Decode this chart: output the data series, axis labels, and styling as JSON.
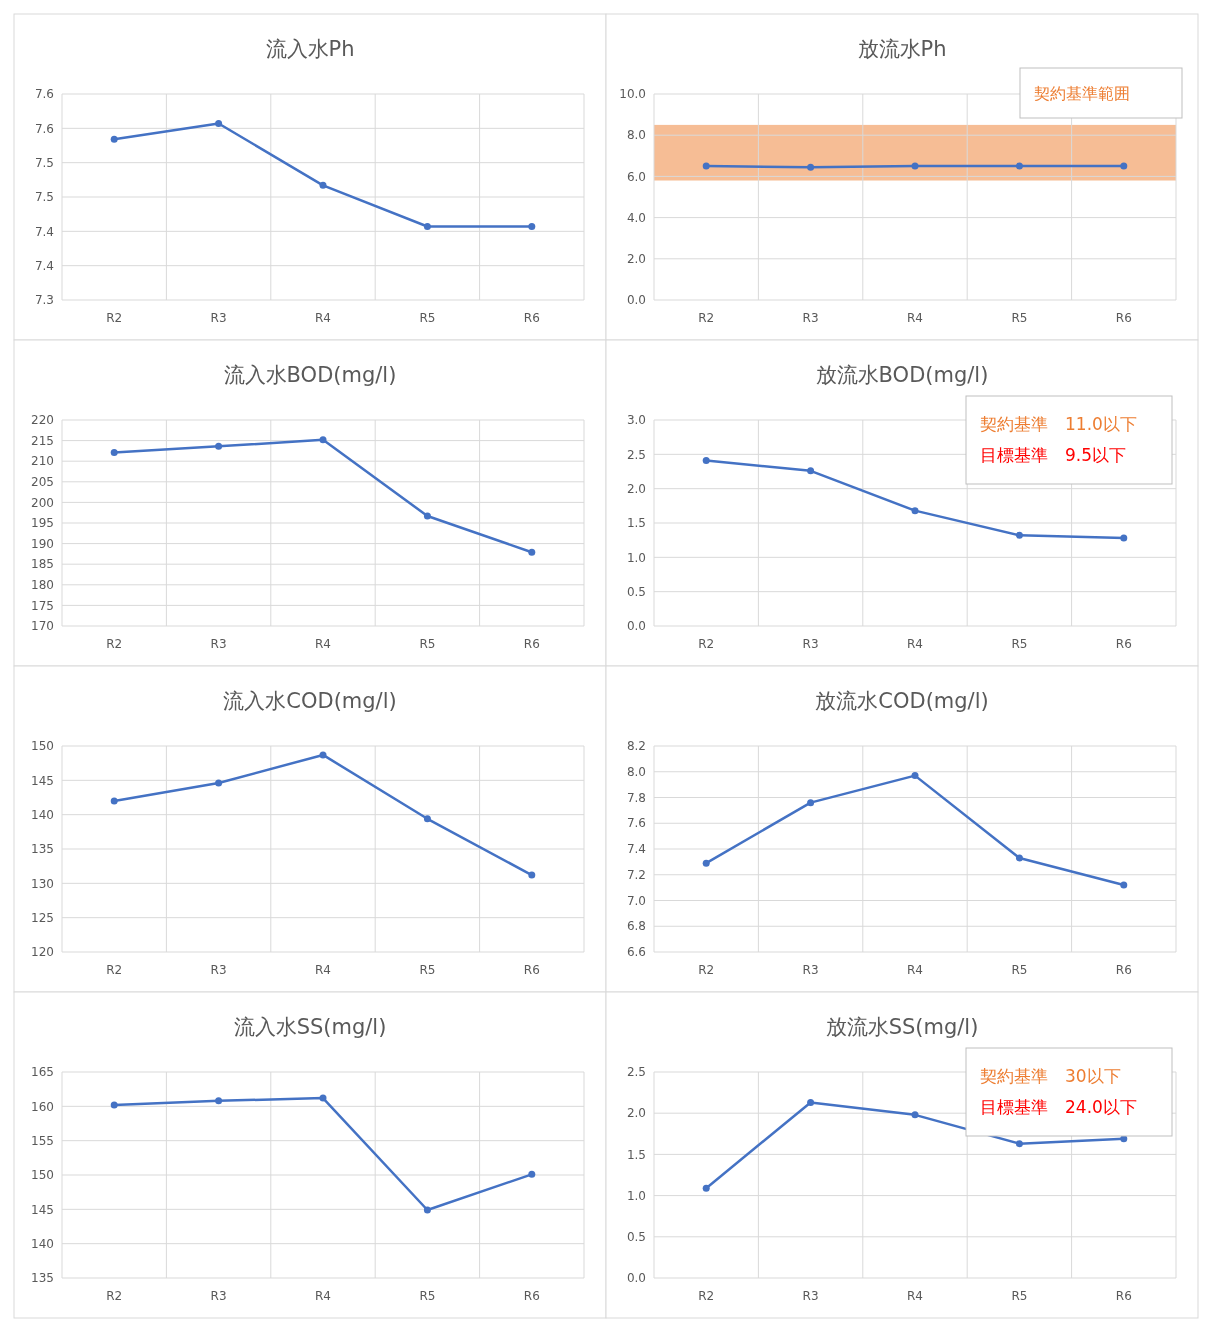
{
  "chart_data": [
    {
      "type": "line",
      "title": "流入水Ph",
      "categories": [
        "R2",
        "R3",
        "R4",
        "R5",
        "R6"
      ],
      "series": [
        {
          "color": "#4472c4",
          "values": [
            7.534,
            7.557,
            7.467,
            7.407,
            7.407
          ]
        }
      ],
      "ylim": [
        7.3,
        7.6
      ],
      "yticks": [
        {
          "value": 7.3,
          "label": "7.3"
        },
        {
          "value": 7.35,
          "label": "7.4"
        },
        {
          "value": 7.4,
          "label": "7.4"
        },
        {
          "value": 7.45,
          "label": "7.5"
        },
        {
          "value": 7.5,
          "label": "7.5"
        },
        {
          "value": 7.55,
          "label": "7.6"
        },
        {
          "value": 7.6,
          "label": "7.6"
        }
      ],
      "grid": true,
      "marker": "circle"
    },
    {
      "type": "line",
      "title": "放流水Ph",
      "categories": [
        "R2",
        "R3",
        "R4",
        "R5",
        "R6"
      ],
      "series": [
        {
          "color": "#4472c4",
          "values": [
            6.5,
            6.44,
            6.5,
            6.5,
            6.5
          ]
        }
      ],
      "ylim": [
        0,
        10
      ],
      "yticks": [
        {
          "value": 0,
          "label": "0.0"
        },
        {
          "value": 2,
          "label": "2.0"
        },
        {
          "value": 4,
          "label": "4.0"
        },
        {
          "value": 6,
          "label": "6.0"
        },
        {
          "value": 8,
          "label": "8.0"
        },
        {
          "value": 10,
          "label": "10.0"
        }
      ],
      "bands": [
        {
          "axis": "y",
          "from": 5.8,
          "to": 8.5,
          "label": "契約基準範囲",
          "color": "#f4b183"
        }
      ],
      "grid": true,
      "marker": "circle"
    },
    {
      "type": "line",
      "title": "流入水BOD(mg/l)",
      "categories": [
        "R2",
        "R3",
        "R4",
        "R5",
        "R6"
      ],
      "series": [
        {
          "color": "#4472c4",
          "values": [
            212.1,
            213.6,
            215.2,
            196.7,
            187.9
          ]
        }
      ],
      "ylim": [
        170,
        220
      ],
      "yticks": [
        170,
        175,
        180,
        185,
        190,
        195,
        200,
        205,
        210,
        215,
        220
      ],
      "grid": true,
      "marker": "circle"
    },
    {
      "type": "line",
      "title": "放流水BOD(mg/l)",
      "categories": [
        "R2",
        "R3",
        "R4",
        "R5",
        "R6"
      ],
      "series": [
        {
          "color": "#4472c4",
          "values": [
            2.41,
            2.26,
            1.68,
            1.32,
            1.28
          ]
        }
      ],
      "ylim": [
        0,
        3
      ],
      "yticks": [
        {
          "value": 0,
          "label": "0.0"
        },
        {
          "value": 0.5,
          "label": "0.5"
        },
        {
          "value": 1,
          "label": "1.0"
        },
        {
          "value": 1.5,
          "label": "1.5"
        },
        {
          "value": 2,
          "label": "2.0"
        },
        {
          "value": 2.5,
          "label": "2.5"
        },
        {
          "value": 3,
          "label": "3.0"
        }
      ],
      "annotations": [
        "契約基準　11.0以下",
        "目標基準　9.5以下"
      ],
      "grid": true,
      "marker": "circle"
    },
    {
      "type": "line",
      "title": "流入水COD(mg/l)",
      "categories": [
        "R2",
        "R3",
        "R4",
        "R5",
        "R6"
      ],
      "series": [
        {
          "color": "#4472c4",
          "values": [
            142.0,
            144.6,
            148.7,
            139.4,
            131.2
          ]
        }
      ],
      "ylim": [
        120,
        150
      ],
      "yticks": [
        120,
        125,
        130,
        135,
        140,
        145,
        150
      ],
      "grid": true,
      "marker": "circle"
    },
    {
      "type": "line",
      "title": "放流水COD(mg/l)",
      "categories": [
        "R2",
        "R3",
        "R4",
        "R5",
        "R6"
      ],
      "series": [
        {
          "color": "#4472c4",
          "values": [
            7.29,
            7.76,
            7.97,
            7.33,
            7.12
          ]
        }
      ],
      "ylim": [
        6.6,
        8.2
      ],
      "yticks": [
        {
          "value": 6.6,
          "label": "6.6"
        },
        {
          "value": 6.8,
          "label": "6.8"
        },
        {
          "value": 7,
          "label": "7.0"
        },
        {
          "value": 7.2,
          "label": "7.2"
        },
        {
          "value": 7.4,
          "label": "7.4"
        },
        {
          "value": 7.6,
          "label": "7.6"
        },
        {
          "value": 7.8,
          "label": "7.8"
        },
        {
          "value": 8,
          "label": "8.0"
        },
        {
          "value": 8.2,
          "label": "8.2"
        }
      ],
      "grid": true,
      "marker": "circle"
    },
    {
      "type": "line",
      "title": "流入水SS(mg/l)",
      "categories": [
        "R2",
        "R3",
        "R4",
        "R5",
        "R6"
      ],
      "series": [
        {
          "color": "#4472c4",
          "values": [
            160.2,
            160.8,
            161.2,
            144.9,
            150.1
          ]
        }
      ],
      "ylim": [
        135,
        165
      ],
      "yticks": [
        135,
        140,
        145,
        150,
        155,
        160,
        165
      ],
      "grid": true,
      "marker": "circle"
    },
    {
      "type": "line",
      "title": "放流水SS(mg/l)",
      "categories": [
        "R2",
        "R3",
        "R4",
        "R5",
        "R6"
      ],
      "series": [
        {
          "color": "#4472c4",
          "values": [
            1.09,
            2.13,
            1.98,
            1.63,
            1.69
          ]
        }
      ],
      "ylim": [
        0,
        2.5
      ],
      "yticks": [
        {
          "value": 0,
          "label": "0.0"
        },
        {
          "value": 0.5,
          "label": "0.5"
        },
        {
          "value": 1,
          "label": "1.0"
        },
        {
          "value": 1.5,
          "label": "1.5"
        },
        {
          "value": 2,
          "label": "2.0"
        },
        {
          "value": 2.5,
          "label": "2.5"
        }
      ],
      "annotations": [
        "契約基準　30以下",
        "目標基準　24.0以下"
      ],
      "grid": true,
      "marker": "circle"
    }
  ]
}
